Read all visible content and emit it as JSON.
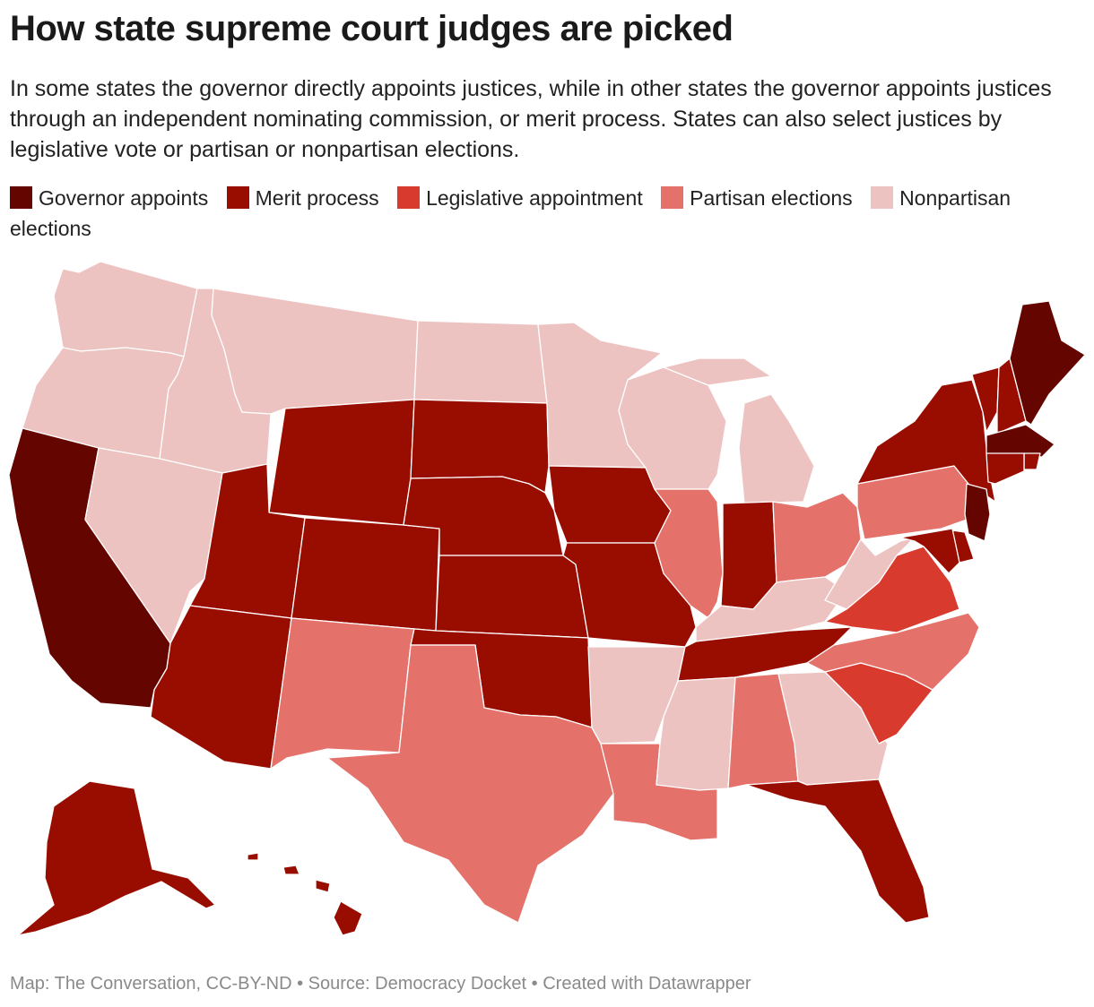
{
  "title": "How state supreme court judges are picked",
  "subtitle": "In some states the governor directly appoints justices, while in other states the governor appoints justices through an independent nominating commission, or merit process. States can also select justices by legislative vote or partisan or nonpartisan elections.",
  "legend": [
    {
      "key": "gov",
      "label": "Governor appoints",
      "color": "#650500"
    },
    {
      "key": "merit",
      "label": "Merit process",
      "color": "#990c00"
    },
    {
      "key": "leg",
      "label": "Legislative appointment",
      "color": "#d83a2e"
    },
    {
      "key": "part",
      "label": "Partisan elections",
      "color": "#e5716b"
    },
    {
      "key": "nonpart",
      "label": "Nonpartisan elections",
      "color": "#edc3c1"
    }
  ],
  "states": [
    {
      "id": "WA",
      "category": "nonpart"
    },
    {
      "id": "OR",
      "category": "nonpart"
    },
    {
      "id": "CA",
      "category": "gov"
    },
    {
      "id": "ID",
      "category": "nonpart"
    },
    {
      "id": "NV",
      "category": "nonpart"
    },
    {
      "id": "MT",
      "category": "nonpart"
    },
    {
      "id": "WY",
      "category": "merit"
    },
    {
      "id": "UT",
      "category": "merit"
    },
    {
      "id": "AZ",
      "category": "merit"
    },
    {
      "id": "CO",
      "category": "merit"
    },
    {
      "id": "NM",
      "category": "part"
    },
    {
      "id": "ND",
      "category": "nonpart"
    },
    {
      "id": "SD",
      "category": "merit"
    },
    {
      "id": "NE",
      "category": "merit"
    },
    {
      "id": "KS",
      "category": "merit"
    },
    {
      "id": "OK",
      "category": "merit"
    },
    {
      "id": "TX",
      "category": "part"
    },
    {
      "id": "MN",
      "category": "nonpart"
    },
    {
      "id": "IA",
      "category": "merit"
    },
    {
      "id": "MO",
      "category": "merit"
    },
    {
      "id": "AR",
      "category": "nonpart"
    },
    {
      "id": "LA",
      "category": "part"
    },
    {
      "id": "WI",
      "category": "nonpart"
    },
    {
      "id": "IL",
      "category": "part"
    },
    {
      "id": "MI",
      "category": "nonpart"
    },
    {
      "id": "IN",
      "category": "merit"
    },
    {
      "id": "OH",
      "category": "part"
    },
    {
      "id": "KY",
      "category": "nonpart"
    },
    {
      "id": "TN",
      "category": "merit"
    },
    {
      "id": "MS",
      "category": "nonpart"
    },
    {
      "id": "AL",
      "category": "part"
    },
    {
      "id": "GA",
      "category": "nonpart"
    },
    {
      "id": "FL",
      "category": "merit"
    },
    {
      "id": "SC",
      "category": "leg"
    },
    {
      "id": "NC",
      "category": "part"
    },
    {
      "id": "VA",
      "category": "leg"
    },
    {
      "id": "WV",
      "category": "nonpart"
    },
    {
      "id": "PA",
      "category": "part"
    },
    {
      "id": "NY",
      "category": "merit"
    },
    {
      "id": "VT",
      "category": "merit"
    },
    {
      "id": "NH",
      "category": "merit"
    },
    {
      "id": "ME",
      "category": "gov"
    },
    {
      "id": "MA",
      "category": "gov"
    },
    {
      "id": "RI",
      "category": "merit"
    },
    {
      "id": "CT",
      "category": "merit"
    },
    {
      "id": "NJ",
      "category": "gov"
    },
    {
      "id": "DE",
      "category": "merit"
    },
    {
      "id": "MD",
      "category": "merit"
    },
    {
      "id": "AK",
      "category": "merit"
    },
    {
      "id": "HI",
      "category": "merit"
    }
  ],
  "footer": "Map: The Conversation, CC-BY-ND • Source: Democracy Docket • Created with Datawrapper"
}
